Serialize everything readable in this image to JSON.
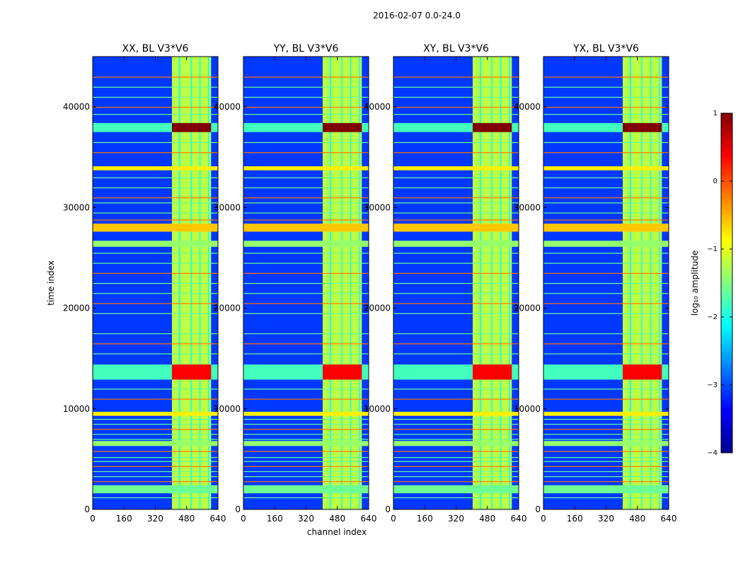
{
  "chart_data": {
    "type": "heatmap",
    "suptitle": "2016-02-07 0.0-24.0",
    "xlabel": "channel index",
    "ylabel": "time index",
    "xlim": [
      0,
      640
    ],
    "ylim": [
      0,
      45000
    ],
    "xticks": [
      0,
      160,
      320,
      480,
      640
    ],
    "yticks": [
      0,
      10000,
      20000,
      30000,
      40000
    ],
    "colorbar": {
      "label": "log₁₀ amplitude",
      "range": [
        -4,
        1
      ],
      "ticks": [
        {
          "value": 1,
          "label": "1"
        },
        {
          "value": 0,
          "label": "0"
        },
        {
          "value": -1,
          "label": "−1"
        },
        {
          "value": -2,
          "label": "−2"
        },
        {
          "value": -3,
          "label": "−3"
        },
        {
          "value": -4,
          "label": "−4"
        }
      ]
    },
    "panels": [
      {
        "title": "XX, BL V3*V6"
      },
      {
        "title": "YY, BL V3*V6"
      },
      {
        "title": "XY, BL V3*V6"
      },
      {
        "title": "YX, BL V3*V6"
      }
    ],
    "bright_channel_band": [
      405,
      605
    ],
    "hot_time_bands": [
      {
        "from": 37500,
        "to": 38400,
        "value": 1.0
      },
      {
        "from": 12900,
        "to": 14400,
        "value": 0.4
      }
    ],
    "flagged_time_bands": [
      {
        "from": 27600,
        "to": 28400,
        "value": -0.6
      },
      {
        "from": 26100,
        "to": 26700,
        "value": -1.4
      },
      {
        "from": 33700,
        "to": 34100,
        "value": -0.8
      },
      {
        "from": 9300,
        "to": 9700,
        "value": -0.8
      },
      {
        "from": 6300,
        "to": 6800,
        "value": -1.4
      },
      {
        "from": 1600,
        "to": 2400,
        "value": -1.6
      }
    ]
  }
}
